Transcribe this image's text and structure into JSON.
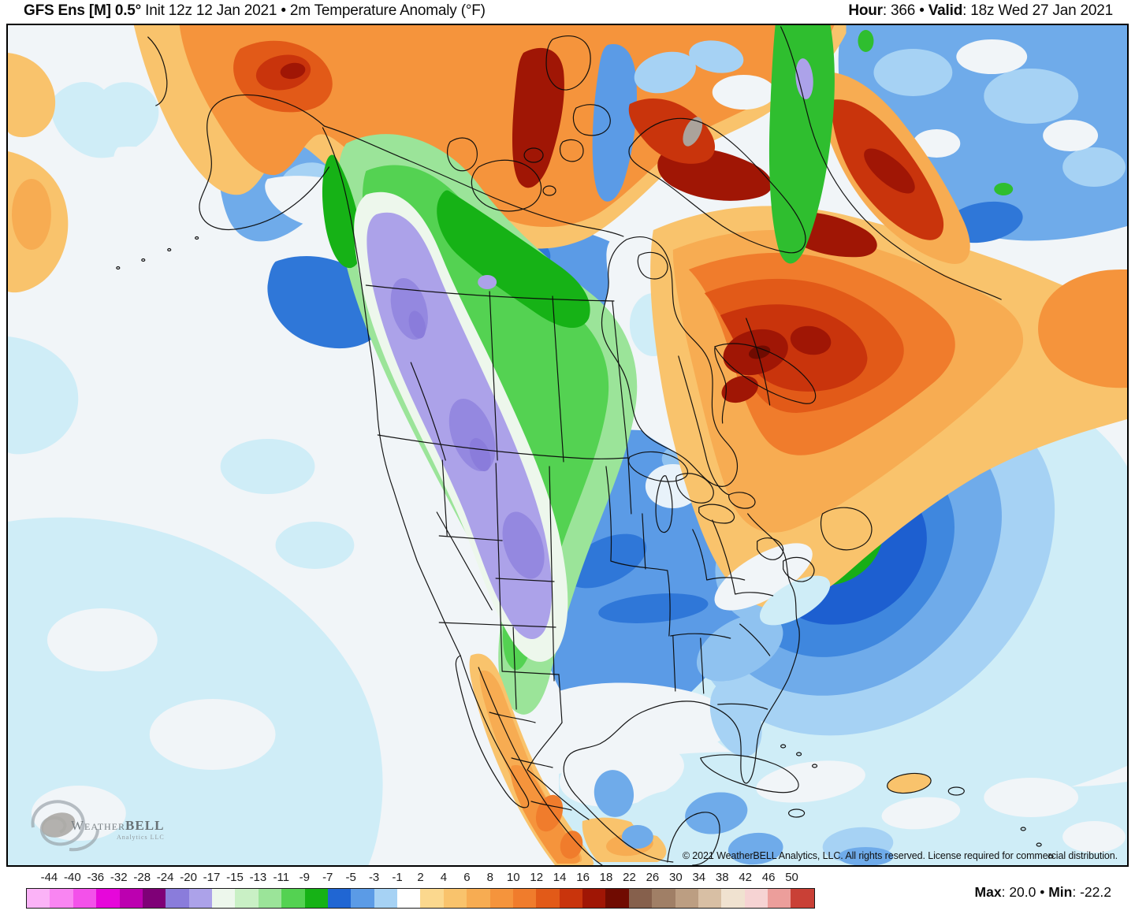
{
  "header": {
    "model_bold": "GFS Ens [M] 0.5",
    "degree": "°",
    "subtitle": " Init 12z 12 Jan 2021 • 2m Temperature Anomaly (°F)",
    "hour_label": "Hour",
    "colon": ": ",
    "hour_value": "366",
    "bullet": " • ",
    "valid_label": "Valid",
    "valid_value": "18z Wed 27 Jan 2021"
  },
  "map": {
    "copyright": "© 2021 WeatherBELL Analytics, LLC. All rights reserved. License required for commercial distribution.",
    "logo_title_a": "Weather",
    "logo_title_b": "BELL",
    "logo_subtitle": "Analytics LLC"
  },
  "colorbar": {
    "ticks": [
      "-44",
      "-40",
      "-36",
      "-32",
      "-28",
      "-24",
      "-20",
      "-17",
      "-15",
      "-13",
      "-11",
      "-9",
      "-7",
      "-5",
      "-3",
      "-1",
      "2",
      "4",
      "6",
      "8",
      "10",
      "12",
      "14",
      "16",
      "18",
      "22",
      "26",
      "30",
      "34",
      "38",
      "42",
      "46",
      "50"
    ],
    "segment_colors": [
      "#FBB3F7",
      "#F985F2",
      "#F351EA",
      "#E607DA",
      "#BC00B0",
      "#7F0077",
      "#8A7CDB",
      "#ACA2E9",
      "#EDF7EC",
      "#C9F0C5",
      "#9BE499",
      "#54D252",
      "#16B216",
      "#2066D3",
      "#5B9BE6",
      "#A6D2F4",
      "#FFFFFF",
      "#FBD88E",
      "#F9C36C",
      "#F7AC52",
      "#F5943C",
      "#F07C2C",
      "#E25A18",
      "#C9340C",
      "#A01605",
      "#700B01",
      "#86604C",
      "#A07F66",
      "#BC9E82",
      "#D8BFA4",
      "#F0E2D0",
      "#F6D3D3",
      "#EC9E9B",
      "#C94036"
    ]
  },
  "footer": {
    "max_label": "Max",
    "sep": ": ",
    "max_value": "20.0",
    "bullet": " • ",
    "min_label": "Min",
    "min_value": "-22.2"
  }
}
